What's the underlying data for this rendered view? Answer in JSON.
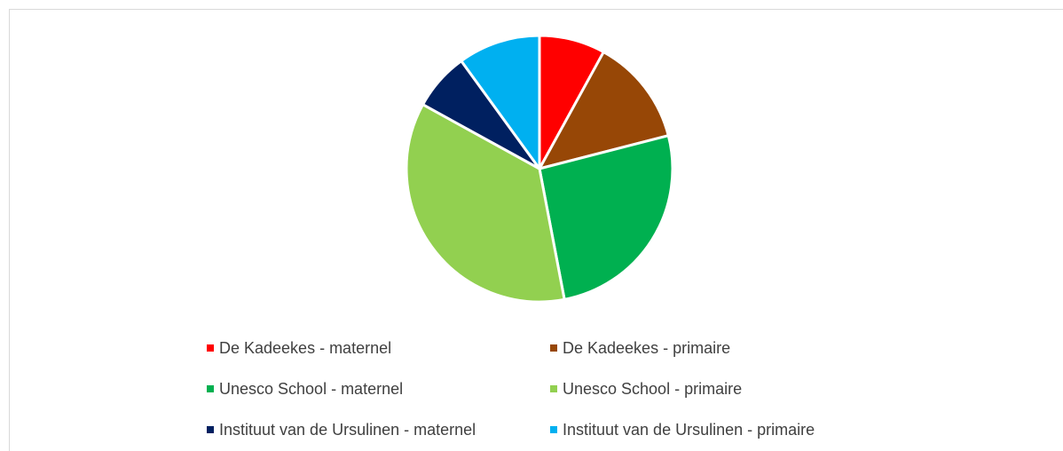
{
  "chart_data": {
    "type": "pie",
    "categories": [
      "De Kadeekes - maternel",
      "De Kadeekes - primaire",
      "Unesco School - maternel",
      "Unesco School - primaire",
      "Instituut van de Ursulinen - maternel",
      "Instituut van de Ursulinen - primaire"
    ],
    "values": [
      8,
      13,
      26,
      36,
      7,
      10
    ],
    "colors": [
      "#ff0000",
      "#974706",
      "#00b050",
      "#92d050",
      "#002060",
      "#00b0f0"
    ],
    "legend": "bottom"
  }
}
